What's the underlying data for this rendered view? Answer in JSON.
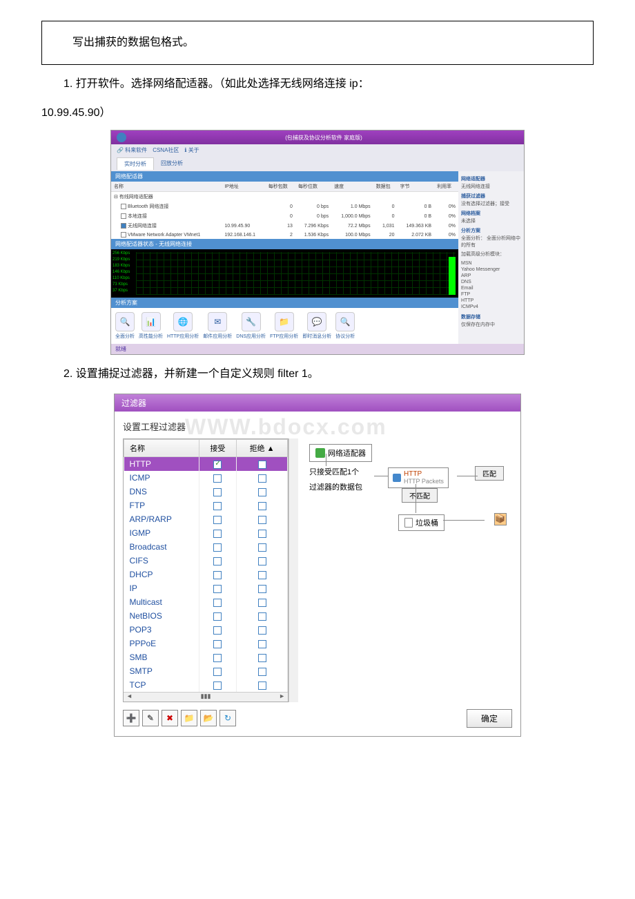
{
  "intro": "写出捕获的数据包格式。",
  "step1": "1. 打开软件。选择网络配适器。（如此处选择无线网络连接 ip：",
  "ip_line": "10.99.45.90）",
  "step2": "2. 设置捕捉过滤器，并新建一个自定义规则 filter 1。",
  "sc1": {
    "titlebar": "(包捕获及协议分析软件 家庭版)",
    "toolbar": {
      "csna": "CSNA社区",
      "help": "关于"
    },
    "tab_active": "实时分析",
    "tab_other": "回放分析",
    "section_adapter": "网络配适器",
    "table": {
      "cols": [
        "名称",
        "IP地址",
        "每秒包数",
        "每秒位数",
        "速度",
        "数据包",
        "字节",
        "利用率"
      ],
      "group": "有线网络适配器",
      "rows": [
        {
          "name": "Bluetooth 网络连接",
          "ip": "",
          "pps": "0",
          "bps": "0 bps",
          "speed": "1.0 Mbps",
          "pkts": "0",
          "bytes": "0 B",
          "util": "0%",
          "checked": false
        },
        {
          "name": "本地连接",
          "ip": "",
          "pps": "0",
          "bps": "0 bps",
          "speed": "1,000.0 Mbps",
          "pkts": "0",
          "bytes": "0 B",
          "util": "0%",
          "checked": false
        },
        {
          "name": "无线网络连接",
          "ip": "10.99.45.90",
          "pps": "13",
          "bps": "7.296 Kbps",
          "speed": "72.2 Mbps",
          "pkts": "1,031",
          "bytes": "149.363 KB",
          "util": "0%",
          "checked": true
        },
        {
          "name": "VMware Network Adapter VMnet1",
          "ip": "192.168.146.1",
          "pps": "2",
          "bps": "1.536 Kbps",
          "speed": "100.0 Mbps",
          "pkts": "20",
          "bytes": "2.072 KB",
          "util": "0%",
          "checked": false
        }
      ]
    },
    "chart_title": "网络配适器状态 - 无线网络连接",
    "chart_labels": [
      "256 Kbps",
      "219 Kbps",
      "183 Kbps",
      "146 Kbps",
      "110 Kbps",
      "73 Kbps",
      "37 Kbps"
    ],
    "analysis_section": "分析方案",
    "analysis_items": [
      "全面分析",
      "高性能分析",
      "HTTP应用分析",
      "邮件应用分析",
      "DNS应用分析",
      "FTP应用分析",
      "即时消息分析",
      "协议分析"
    ],
    "right_panel": {
      "h1": "网络适配器",
      "t1": "无线网络连接",
      "h2": "捕获过滤器",
      "t2": "没有选择过滤器；接受",
      "h3": "网络档案",
      "t3": "未选择",
      "h4": "分析方案",
      "t4": "全面分析：\n全面分析网络中的所有",
      "h5": "加载高级分析模块：",
      "modules": [
        "MSN",
        "Yahoo Messenger",
        "ARP",
        "DNS",
        "Email",
        "FTP",
        "HTTP",
        "ICMPv4"
      ],
      "h6": "数据存储",
      "t6": "仅保存在内存中"
    },
    "status": "就绪"
  },
  "sc2": {
    "dlg_title": "过滤器",
    "header": "设置工程过滤器",
    "watermark": "WWW.bdocx.com",
    "cols": [
      "名称",
      "接受",
      "拒绝"
    ],
    "filters": [
      {
        "name": "HTTP",
        "accept": true,
        "reject": false,
        "selected": true
      },
      {
        "name": "ICMP",
        "accept": false,
        "reject": false
      },
      {
        "name": "DNS",
        "accept": false,
        "reject": false
      },
      {
        "name": "FTP",
        "accept": false,
        "reject": false
      },
      {
        "name": "ARP/RARP",
        "accept": false,
        "reject": false
      },
      {
        "name": "IGMP",
        "accept": false,
        "reject": false
      },
      {
        "name": "Broadcast",
        "accept": false,
        "reject": false
      },
      {
        "name": "CIFS",
        "accept": false,
        "reject": false
      },
      {
        "name": "DHCP",
        "accept": false,
        "reject": false
      },
      {
        "name": "IP",
        "accept": false,
        "reject": false
      },
      {
        "name": "Multicast",
        "accept": false,
        "reject": false
      },
      {
        "name": "NetBIOS",
        "accept": false,
        "reject": false
      },
      {
        "name": "POP3",
        "accept": false,
        "reject": false
      },
      {
        "name": "PPPoE",
        "accept": false,
        "reject": false
      },
      {
        "name": "SMB",
        "accept": false,
        "reject": false
      },
      {
        "name": "SMTP",
        "accept": false,
        "reject": false
      },
      {
        "name": "TCP",
        "accept": false,
        "reject": false
      }
    ],
    "diagram": {
      "adapter": "网络适配器",
      "line1": "只接受匹配1个",
      "line2": "过滤器的数据包",
      "http": "HTTP",
      "http_sub": "HTTP Packets",
      "match": "匹配",
      "nomatch": "不匹配",
      "trash": "垃圾桶"
    },
    "ok": "确定"
  }
}
